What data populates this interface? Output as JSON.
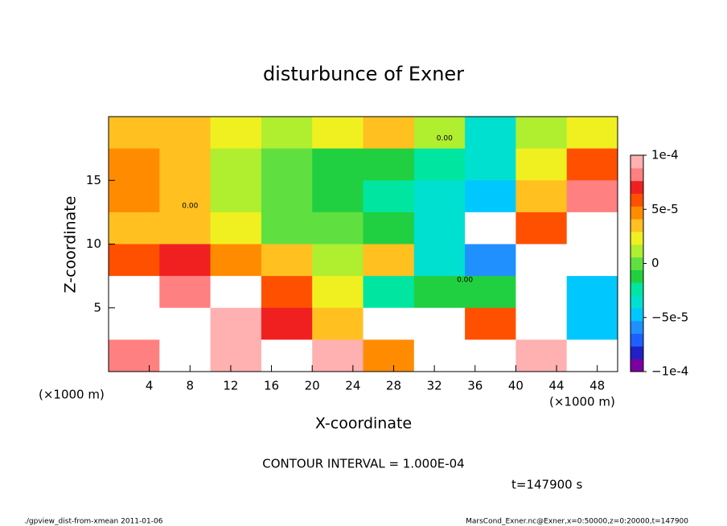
{
  "chart_data": {
    "type": "heatmap",
    "title": "disturbunce of Exner",
    "x_label": "X-coordinate",
    "y_label": "Z-coordinate",
    "x_unit_label": "(×1000 m)",
    "contour_interval": "CONTOUR INTERVAL = 1.000E-04",
    "time_label": "t=147900 s",
    "footer_left": "./gpview_dist-from-xmean  2011-01-06",
    "footer_right": "MarsCond_Exner.nc@Exner,x=0:50000,z=0:20000,t=147900",
    "annotations": [
      {
        "text": "0.00",
        "x": 33,
        "z": 18.3
      },
      {
        "text": "0.00",
        "x": 8,
        "z": 13
      },
      {
        "text": "0.00",
        "x": 35,
        "z": 7.2
      }
    ],
    "x": [
      2.5,
      7.5,
      12.5,
      17.5,
      22.5,
      27.5,
      32.5,
      37.5,
      42.5,
      47.5
    ],
    "y": [
      18.75,
      16.25,
      13.75,
      11.25,
      8.75,
      6.25,
      3.75,
      1.25
    ],
    "z": [
      [
        3e-05,
        3e-05,
        2e-05,
        1e-05,
        2e-05,
        3e-05,
        1e-05,
        -3e-05,
        1e-05,
        2e-05
      ],
      [
        5e-05,
        3e-05,
        1e-05,
        0,
        -1e-05,
        -1e-05,
        -2e-05,
        -3e-05,
        2e-05,
        6e-05
      ],
      [
        5e-05,
        3e-05,
        1e-05,
        0,
        -1e-05,
        -2e-05,
        -3e-05,
        -5e-05,
        3e-05,
        8e-05
      ],
      [
        4e-05,
        4e-05,
        2e-05,
        0,
        0,
        -1e-05,
        -3e-05,
        -0.00012,
        6e-05,
        0.00012
      ],
      [
        6e-05,
        7e-05,
        5e-05,
        4e-05,
        1e-05,
        3e-05,
        -4e-05,
        -6e-05,
        -0.00012,
        0.00012
      ],
      [
        0.00012,
        8e-05,
        0.00012,
        6e-05,
        2e-05,
        -2e-05,
        -1e-05,
        -1e-05,
        -0.00015,
        -5e-05
      ],
      [
        -0.00012,
        0.00012,
        0.0001,
        7e-05,
        4e-05,
        0.00011,
        0.00012,
        6e-05,
        -0.00013,
        -5e-05
      ],
      [
        8e-05,
        -0.00011,
        0.0001,
        0.00012,
        0.0001,
        5e-05,
        0.00012,
        0.00011,
        0.0001,
        0.00012
      ]
    ],
    "xlim": [
      0,
      50
    ],
    "ylim": [
      0,
      20
    ],
    "xticks": [
      4,
      8,
      12,
      16,
      20,
      24,
      28,
      32,
      36,
      40,
      44,
      48
    ],
    "yticks": [
      5,
      10,
      15
    ],
    "clim": [
      -0.0001,
      0.0001
    ],
    "cticks": [
      {
        "value": -0.0001,
        "label": "−1e-4"
      },
      {
        "value": -5e-05,
        "label": "−5e-5"
      },
      {
        "value": 0,
        "label": "0"
      },
      {
        "value": 5e-05,
        "label": "5e-5"
      },
      {
        "value": 0.0001,
        "label": "1e-4"
      }
    ],
    "colormap": [
      "#7a00a0",
      "#2020c8",
      "#1e60ff",
      "#2090ff",
      "#00c8ff",
      "#00e0d0",
      "#00e6a0",
      "#20d040",
      "#60e040",
      "#b0ee30",
      "#f0f020",
      "#ffc020",
      "#ff8c00",
      "#ff5000",
      "#f02020",
      "#ff8080",
      "#ffb0b0"
    ],
    "out_of_range_color": "#ffffff"
  }
}
